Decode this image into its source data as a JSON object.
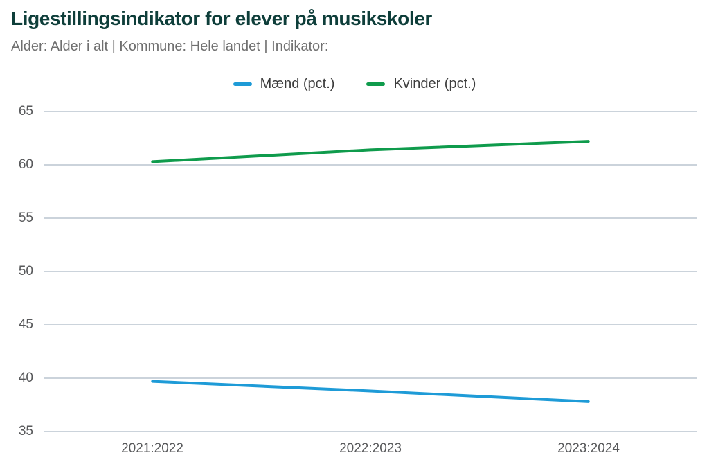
{
  "header": {
    "title": "Ligestillingsindikator for elever på musikskoler",
    "subtitle": "Alder: Alder i alt | Kommune: Hele landet | Indikator:"
  },
  "chart_data": {
    "type": "line",
    "title": "Ligestillingsindikator for elever på musikskoler",
    "xlabel": "",
    "ylabel": "",
    "categories": [
      "2021:2022",
      "2022:2023",
      "2023:2024"
    ],
    "series": [
      {
        "name": "Mænd (pct.)",
        "color": "#1E9BD7",
        "values": [
          39.7,
          38.8,
          37.8
        ]
      },
      {
        "name": "Kvinder (pct.)",
        "color": "#0F9B4C",
        "values": [
          60.3,
          61.4,
          62.2
        ]
      }
    ],
    "ylim": [
      35,
      65
    ],
    "yticks": [
      35,
      40,
      45,
      50,
      55,
      60,
      65
    ],
    "grid": true,
    "legend_position": "top-center"
  },
  "colors": {
    "title_text": "#0E3E3A",
    "subtitle_text": "#6F6F6F",
    "legend_text": "#3D3D3D",
    "axis_tick_text": "#58595B",
    "gridline": "#CBD3DB",
    "background": "#FFFFFF"
  }
}
